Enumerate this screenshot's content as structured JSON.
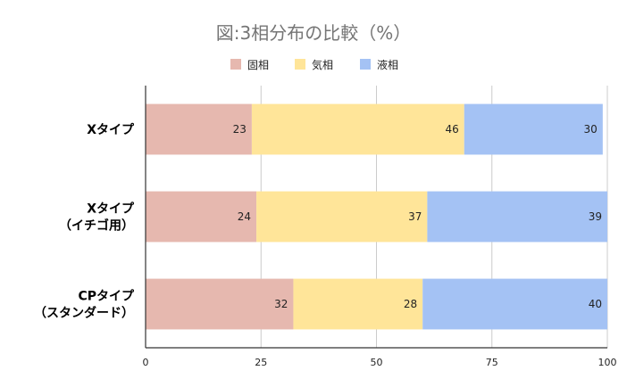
{
  "chart_data": {
    "type": "bar",
    "orientation": "horizontal",
    "stacked": true,
    "title": "図:3相分布の比較（%）",
    "categories": [
      [
        "Xタイプ"
      ],
      [
        "Xタイプ",
        "（イチゴ用）"
      ],
      [
        "CPタイプ",
        "（スタンダード）"
      ]
    ],
    "series": [
      {
        "name": "固相",
        "color": "#e6b8af",
        "values": [
          23,
          24,
          32
        ]
      },
      {
        "name": "気相",
        "color": "#ffe599",
        "values": [
          46,
          37,
          28
        ]
      },
      {
        "name": "液相",
        "color": "#a4c2f4",
        "values": [
          30,
          39,
          40
        ]
      }
    ],
    "xlim": [
      0,
      100
    ],
    "xticks": [
      0,
      25,
      50,
      75,
      100
    ],
    "grid": true,
    "legend": "top-center"
  }
}
